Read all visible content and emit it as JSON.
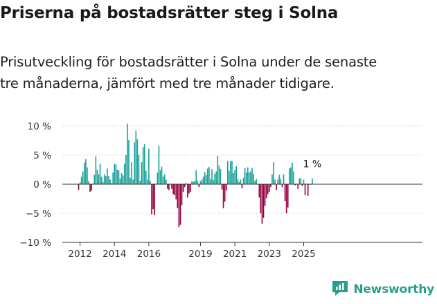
{
  "title": "Priserna på bostadsrätter steg i Solna",
  "subtitle_line1": "Prisutveckling för bostadsrätter i Solna under de senaste",
  "subtitle_line2": "tre månaderna, jämfört med tre månader tidigare.",
  "logo_text": "Newsworthy",
  "logo_icon": "newsworthy-logo-icon",
  "chart_data": {
    "type": "bar",
    "x_start": "2011-12",
    "x_unit": "month",
    "ylim": [
      -10,
      10
    ],
    "yticks": [
      10,
      5,
      0,
      -5,
      -10
    ],
    "ytick_labels": [
      "10 %",
      "5 %",
      "0 %",
      "−5 %",
      "−10 %"
    ],
    "xticks": [
      "2012",
      "2014",
      "2016",
      "2019",
      "2021",
      "2023",
      "2025"
    ],
    "grid": true,
    "annotation": "1 %",
    "colors": {
      "positive": "#1ca39a",
      "negative": "#98003f",
      "grid": "#cccccc",
      "axis": "#333333"
    },
    "values": [
      -1.0,
      0.3,
      1.3,
      2.2,
      3.7,
      4.3,
      2.9,
      0.5,
      -1.3,
      -1.1,
      0.1,
      1.6,
      4.8,
      2.5,
      1.7,
      3.5,
      1.3,
      0.4,
      1.7,
      1.4,
      2.7,
      1.4,
      0.8,
      0.2,
      2.0,
      3.5,
      3.4,
      2.5,
      2.4,
      1.0,
      1.9,
      1.5,
      3.5,
      5.0,
      10.4,
      7.6,
      1.1,
      3.8,
      0.8,
      7.2,
      9.2,
      7.7,
      5.0,
      0.6,
      3.8,
      6.4,
      6.9,
      2.3,
      0.8,
      6.1,
      0.6,
      -5.2,
      -4.3,
      -5.3,
      0.1,
      2.0,
      6.6,
      2.4,
      3.0,
      1.3,
      1.7,
      0.8,
      -0.8,
      -1.0,
      0.1,
      -0.8,
      -1.7,
      -1.9,
      -2.6,
      -4.1,
      -7.4,
      -7.0,
      -3.6,
      -1.3,
      -0.5,
      0.2,
      -2.3,
      -1.6,
      -1.3,
      0.5,
      0.4,
      0.6,
      2.4,
      0.6,
      -0.5,
      0.5,
      0.8,
      1.3,
      2.1,
      1.6,
      2.7,
      3.0,
      0.9,
      2.6,
      0.7,
      1.8,
      2.2,
      4.9,
      3.2,
      2.6,
      -0.9,
      -4.1,
      -3.0,
      -1.1,
      4.0,
      2.3,
      4.0,
      4.0,
      1.9,
      2.4,
      3.1,
      0.9,
      0.4,
      0.8,
      -0.7,
      1.1,
      2.8,
      2.0,
      2.9,
      2.0,
      2.2,
      2.8,
      1.8,
      0.6,
      0.9,
      0.0,
      -2.3,
      -5.0,
      -6.8,
      -5.8,
      -3.7,
      -2.4,
      -1.7,
      -1.3,
      -0.5,
      1.7,
      3.8,
      0.8,
      -1.0,
      0.8,
      1.6,
      0.9,
      -0.5,
      1.7,
      -2.9,
      -5.0,
      -4.0,
      2.7,
      2.9,
      3.7,
      2.2,
      -0.2,
      0.1,
      -0.8,
      1.0,
      1.0,
      -0.3,
      0.8,
      -1.9,
      0.1,
      -2.0,
      0.0,
      0.0,
      1.0
    ]
  }
}
